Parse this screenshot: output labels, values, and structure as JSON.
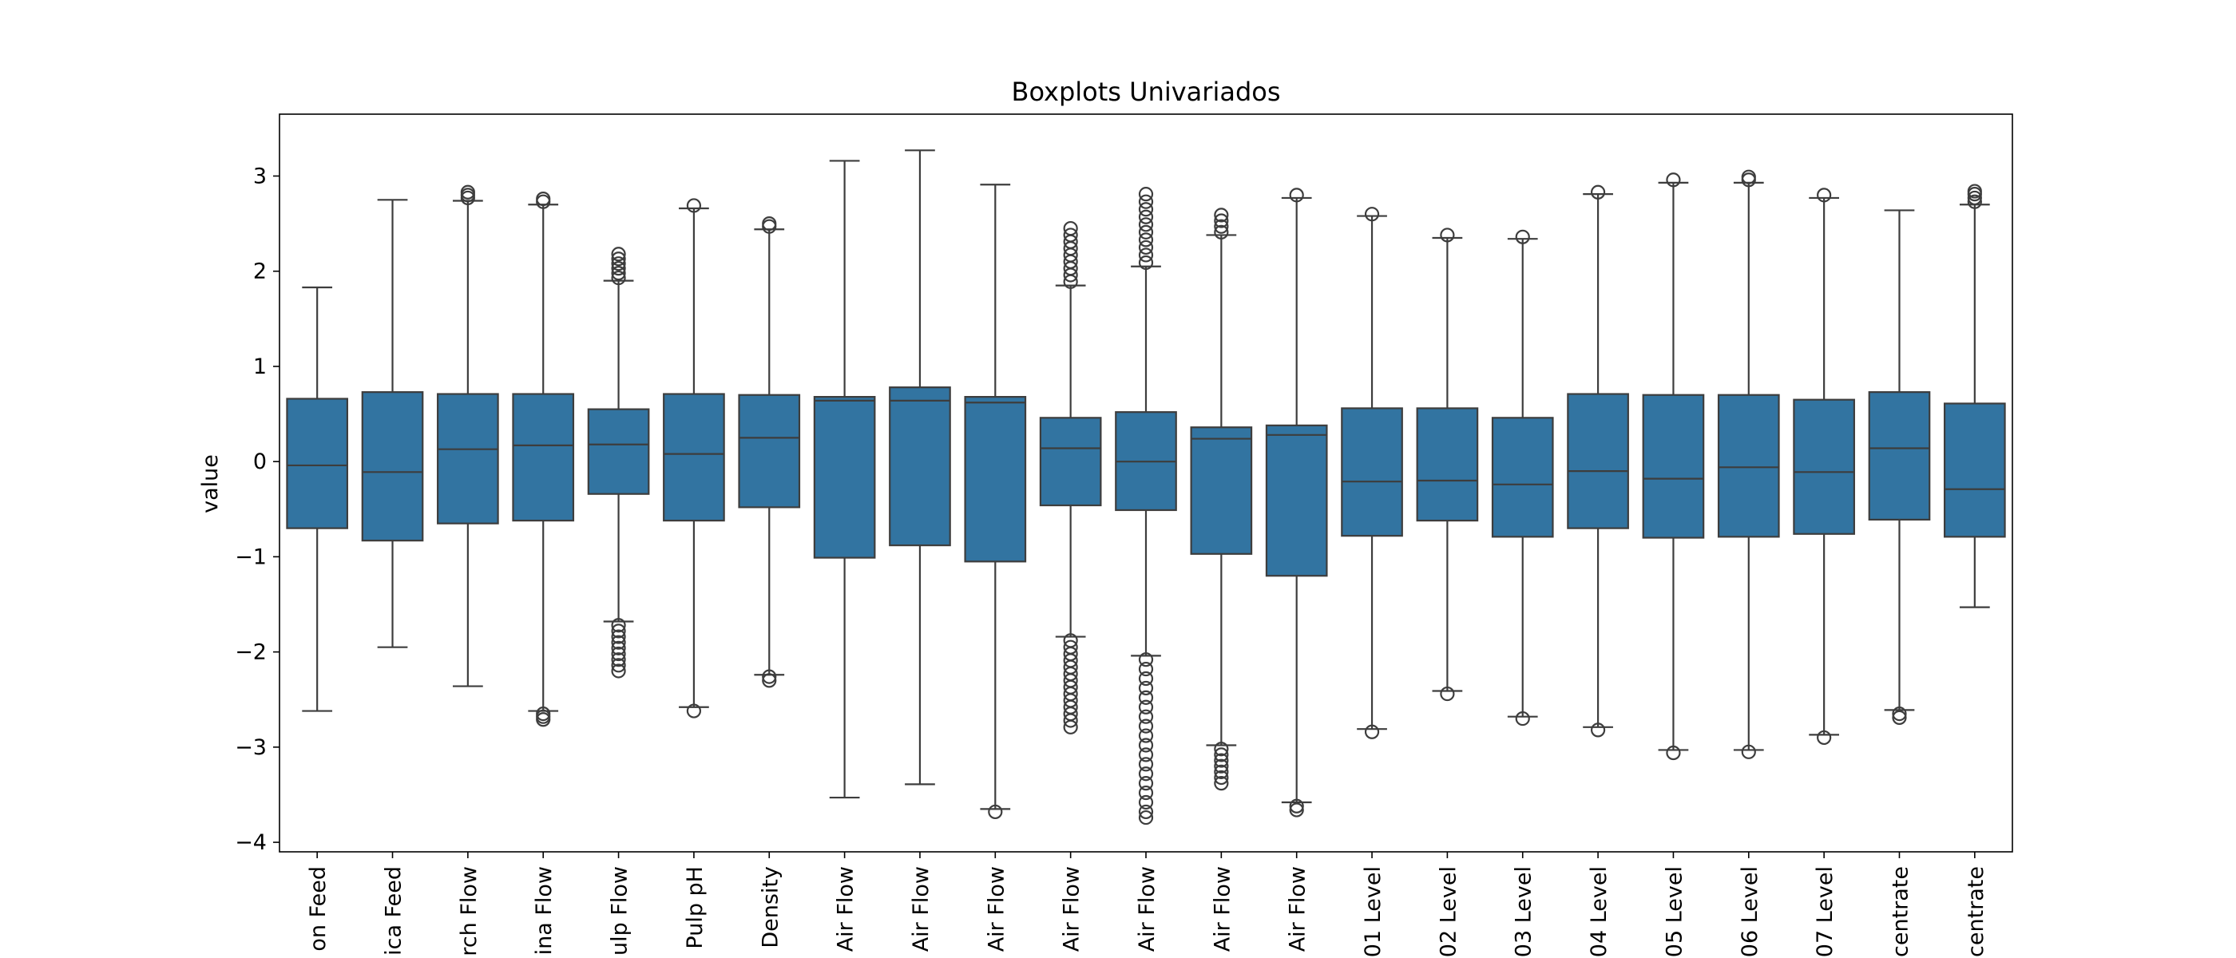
{
  "chart_data": {
    "type": "boxplot",
    "title": "Boxplots Univariados",
    "ylabel": "value",
    "xlabel": "",
    "ylim": [
      -4.1,
      3.65
    ],
    "yticks": [
      -4,
      -3,
      -2,
      -1,
      0,
      1,
      2,
      3
    ],
    "ytick_labels": [
      "−4",
      "−3",
      "−2",
      "−1",
      "0",
      "1",
      "2",
      "3"
    ],
    "grid": false,
    "colors": {
      "box": "#3274a1",
      "line": "#3d3d3d",
      "frame": "#000000"
    },
    "categories": [
      "on Feed",
      "ica Feed",
      "rch Flow",
      "ina Flow",
      "ulp Flow",
      "Pulp pH",
      "Density",
      "Air Flow",
      "Air Flow",
      "Air Flow",
      "Air Flow",
      "Air Flow",
      "Air Flow",
      "Air Flow",
      "01 Level",
      "02 Level",
      "03 Level",
      "04 Level",
      "05 Level",
      "06 Level",
      "07 Level",
      "centrate",
      "centrate"
    ],
    "boxes": [
      {
        "q1": -0.7,
        "median": -0.04,
        "q3": 0.66,
        "whisker_low": -2.62,
        "whisker_high": 1.83,
        "outliers_low": [],
        "outliers_high": []
      },
      {
        "q1": -0.83,
        "median": -0.11,
        "q3": 0.73,
        "whisker_low": -1.95,
        "whisker_high": 2.75,
        "outliers_low": [],
        "outliers_high": []
      },
      {
        "q1": -0.65,
        "median": 0.13,
        "q3": 0.71,
        "whisker_low": -2.36,
        "whisker_high": 2.74,
        "outliers_low": [],
        "outliers_high": [
          2.77,
          2.8,
          2.83
        ]
      },
      {
        "q1": -0.62,
        "median": 0.17,
        "q3": 0.71,
        "whisker_low": -2.62,
        "whisker_high": 2.7,
        "outliers_low": [
          -2.65,
          -2.68,
          -2.71
        ],
        "outliers_high": [
          2.73,
          2.76
        ]
      },
      {
        "q1": -0.34,
        "median": 0.18,
        "q3": 0.55,
        "whisker_low": -1.68,
        "whisker_high": 1.9,
        "outliers_low": [
          -1.72,
          -1.78,
          -1.84,
          -1.9,
          -1.96,
          -2.02,
          -2.08,
          -2.14,
          -2.2
        ],
        "outliers_high": [
          1.93,
          1.98,
          2.03,
          2.08,
          2.13,
          2.18
        ]
      },
      {
        "q1": -0.62,
        "median": 0.08,
        "q3": 0.71,
        "whisker_low": -2.58,
        "whisker_high": 2.66,
        "outliers_low": [
          -2.62
        ],
        "outliers_high": [
          2.69
        ]
      },
      {
        "q1": -0.48,
        "median": 0.25,
        "q3": 0.7,
        "whisker_low": -2.24,
        "whisker_high": 2.44,
        "outliers_low": [
          -2.26,
          -2.3
        ],
        "outliers_high": [
          2.47,
          2.5
        ]
      },
      {
        "q1": -1.01,
        "median": 0.64,
        "q3": 0.68,
        "whisker_low": -3.53,
        "whisker_high": 3.16,
        "outliers_low": [],
        "outliers_high": []
      },
      {
        "q1": -0.88,
        "median": 0.64,
        "q3": 0.78,
        "whisker_low": -3.39,
        "whisker_high": 3.27,
        "outliers_low": [],
        "outliers_high": []
      },
      {
        "q1": -1.05,
        "median": 0.62,
        "q3": 0.68,
        "whisker_low": -3.65,
        "whisker_high": 2.91,
        "outliers_low": [
          -3.68
        ],
        "outliers_high": []
      },
      {
        "q1": -0.46,
        "median": 0.14,
        "q3": 0.46,
        "whisker_low": -1.84,
        "whisker_high": 1.85,
        "outliers_low": [
          -1.88,
          -1.95,
          -2.02,
          -2.09,
          -2.16,
          -2.23,
          -2.3,
          -2.37,
          -2.44,
          -2.51,
          -2.58,
          -2.65,
          -2.72,
          -2.79
        ],
        "outliers_high": [
          1.89,
          1.96,
          2.03,
          2.1,
          2.17,
          2.24,
          2.31,
          2.38,
          2.45
        ]
      },
      {
        "q1": -0.51,
        "median": 0.0,
        "q3": 0.52,
        "whisker_low": -2.04,
        "whisker_high": 2.05,
        "outliers_low": [
          -2.08,
          -2.18,
          -2.28,
          -2.38,
          -2.48,
          -2.58,
          -2.68,
          -2.78,
          -2.88,
          -2.98,
          -3.08,
          -3.18,
          -3.28,
          -3.38,
          -3.48,
          -3.58,
          -3.68,
          -3.74
        ],
        "outliers_high": [
          2.09,
          2.17,
          2.25,
          2.33,
          2.41,
          2.49,
          2.57,
          2.65,
          2.73,
          2.81
        ]
      },
      {
        "q1": -0.97,
        "median": 0.24,
        "q3": 0.36,
        "whisker_low": -2.98,
        "whisker_high": 2.38,
        "outliers_low": [
          -3.02,
          -3.08,
          -3.14,
          -3.2,
          -3.26,
          -3.32,
          -3.38
        ],
        "outliers_high": [
          2.41,
          2.47,
          2.53,
          2.59
        ]
      },
      {
        "q1": -1.2,
        "median": 0.28,
        "q3": 0.38,
        "whisker_low": -3.58,
        "whisker_high": 2.77,
        "outliers_low": [
          -3.62,
          -3.66
        ],
        "outliers_high": [
          2.8
        ]
      },
      {
        "q1": -0.78,
        "median": -0.21,
        "q3": 0.56,
        "whisker_low": -2.81,
        "whisker_high": 2.58,
        "outliers_low": [
          -2.84
        ],
        "outliers_high": [
          2.6
        ]
      },
      {
        "q1": -0.62,
        "median": -0.2,
        "q3": 0.56,
        "whisker_low": -2.41,
        "whisker_high": 2.35,
        "outliers_low": [
          -2.44
        ],
        "outliers_high": [
          2.38
        ]
      },
      {
        "q1": -0.79,
        "median": -0.24,
        "q3": 0.46,
        "whisker_low": -2.68,
        "whisker_high": 2.34,
        "outliers_low": [
          -2.7
        ],
        "outliers_high": [
          2.36
        ]
      },
      {
        "q1": -0.7,
        "median": -0.1,
        "q3": 0.71,
        "whisker_low": -2.79,
        "whisker_high": 2.81,
        "outliers_low": [
          -2.82
        ],
        "outliers_high": [
          2.83
        ]
      },
      {
        "q1": -0.8,
        "median": -0.18,
        "q3": 0.7,
        "whisker_low": -3.03,
        "whisker_high": 2.93,
        "outliers_low": [
          -3.06
        ],
        "outliers_high": [
          2.96
        ]
      },
      {
        "q1": -0.79,
        "median": -0.06,
        "q3": 0.7,
        "whisker_low": -3.03,
        "whisker_high": 2.93,
        "outliers_low": [
          -3.05
        ],
        "outliers_high": [
          2.96,
          2.99
        ]
      },
      {
        "q1": -0.76,
        "median": -0.11,
        "q3": 0.65,
        "whisker_low": -2.87,
        "whisker_high": 2.77,
        "outliers_low": [
          -2.9
        ],
        "outliers_high": [
          2.8
        ]
      },
      {
        "q1": -0.61,
        "median": 0.14,
        "q3": 0.73,
        "whisker_low": -2.61,
        "whisker_high": 2.64,
        "outliers_low": [
          -2.65,
          -2.69
        ],
        "outliers_high": []
      },
      {
        "q1": -0.79,
        "median": -0.29,
        "q3": 0.61,
        "whisker_low": -1.53,
        "whisker_high": 2.7,
        "outliers_low": [],
        "outliers_high": [
          2.73,
          2.77,
          2.81,
          2.84
        ]
      }
    ]
  }
}
